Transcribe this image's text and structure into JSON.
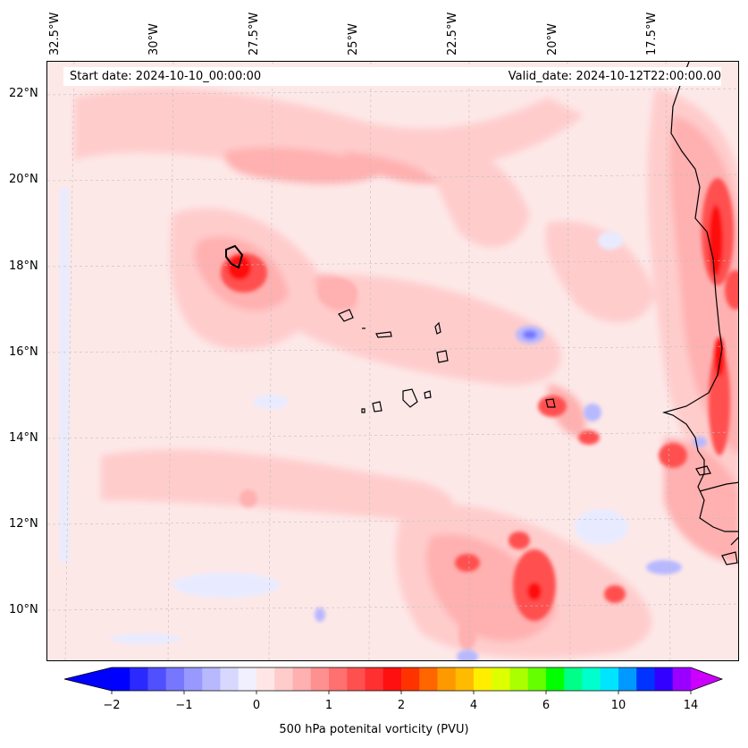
{
  "header": {
    "start_date": "Start date: 2024-10-10_00:00:00",
    "valid_date": "Valid_date: 2024-10-12T22:00:00.00"
  },
  "axes": {
    "lon_labels": [
      "32.5°W",
      "30°W",
      "27.5°W",
      "25°W",
      "22.5°W",
      "20°W",
      "17.5°W"
    ],
    "lat_labels": [
      "22°N",
      "20°N",
      "18°N",
      "16°N",
      "14°N",
      "12°N",
      "10°N"
    ]
  },
  "colorbar": {
    "label": "500 hPa potenital vorticity (PVU)",
    "tick_labels": [
      "−2",
      "−1",
      "0",
      "1",
      "2",
      "4",
      "6",
      "10",
      "14"
    ],
    "colors": [
      "#0000ff",
      "#2a2aff",
      "#5050ff",
      "#7676ff",
      "#9898ff",
      "#b8b8ff",
      "#d8d8ff",
      "#f0f0ff",
      "#ffe6e6",
      "#ffcccc",
      "#ffb0b0",
      "#ff9090",
      "#ff7070",
      "#ff5050",
      "#ff3030",
      "#ff1010",
      "#ff3300",
      "#ff6600",
      "#ff9900",
      "#ffbb00",
      "#ffee00",
      "#ddff00",
      "#aaff00",
      "#66ff00",
      "#00ff00",
      "#00ff88",
      "#00ffcc",
      "#00e5ff",
      "#0099ff",
      "#0033ff",
      "#3300ff",
      "#9900ff"
    ],
    "under_color": "#0000ff",
    "over_color": "#cc00ff"
  },
  "map_colors": {
    "base": "#fde8e8",
    "light_pink": "#ffcccc",
    "pink": "#ffb0b0",
    "red": "#ff5050",
    "dark_red": "#ff1010",
    "light_blue": "#e8ebff",
    "blue": "#b8b8ff",
    "deep_blue": "#7676ff"
  }
}
